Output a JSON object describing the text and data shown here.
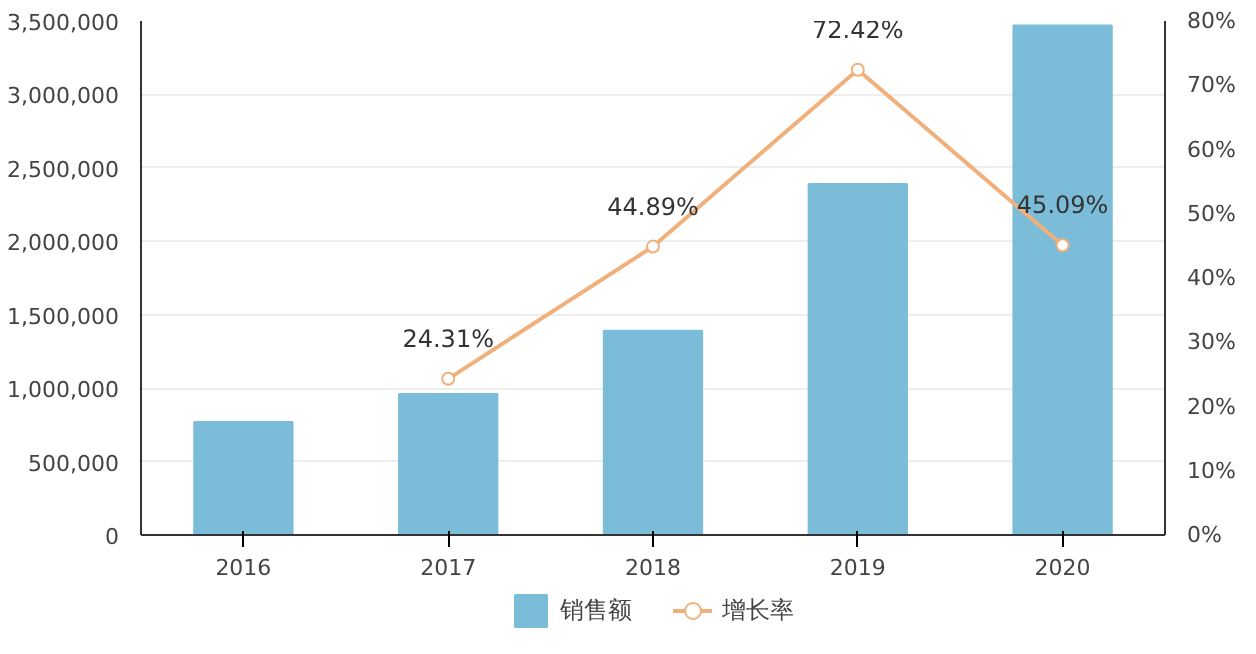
{
  "chart_data": {
    "type": "bar",
    "categories": [
      "2016",
      "2017",
      "2018",
      "2019",
      "2020"
    ],
    "series": [
      {
        "name": "销售额",
        "color": "#7bbcd9",
        "values": [
          770000,
          960000,
          1390000,
          2390000,
          3470000
        ]
      },
      {
        "name": "增长率",
        "type": "line",
        "axis": "y2",
        "color": "#f0b07c",
        "values": [
          null,
          24.31,
          44.89,
          72.42,
          45.09
        ],
        "value_labels": [
          null,
          "24.31%",
          "44.89%",
          "72.42%",
          "45.09%"
        ]
      }
    ],
    "ylim": [
      0,
      3500000
    ],
    "yticks": [
      {
        "value": 0,
        "label": "0"
      },
      {
        "value": 500000,
        "label": "500,000"
      },
      {
        "value": 1000000,
        "label": "1,000,000"
      },
      {
        "value": 1500000,
        "label": "1,500,000"
      },
      {
        "value": 2000000,
        "label": "2,000,000"
      },
      {
        "value": 2500000,
        "label": "2,500,000"
      },
      {
        "value": 3000000,
        "label": "3,000,000"
      },
      {
        "value": 3500000,
        "label": "3,500,000"
      }
    ],
    "y2lim": [
      0,
      80
    ],
    "y2ticks": [
      {
        "value": 0,
        "label": "0%"
      },
      {
        "value": 10,
        "label": "10%"
      },
      {
        "value": 20,
        "label": "20%"
      },
      {
        "value": 30,
        "label": "30%"
      },
      {
        "value": 40,
        "label": "40%"
      },
      {
        "value": 50,
        "label": "50%"
      },
      {
        "value": 60,
        "label": "60%"
      },
      {
        "value": 70,
        "label": "70%"
      },
      {
        "value": 80,
        "label": "80%"
      }
    ],
    "grid": "y",
    "legend": "bottom",
    "marker": "circle"
  }
}
